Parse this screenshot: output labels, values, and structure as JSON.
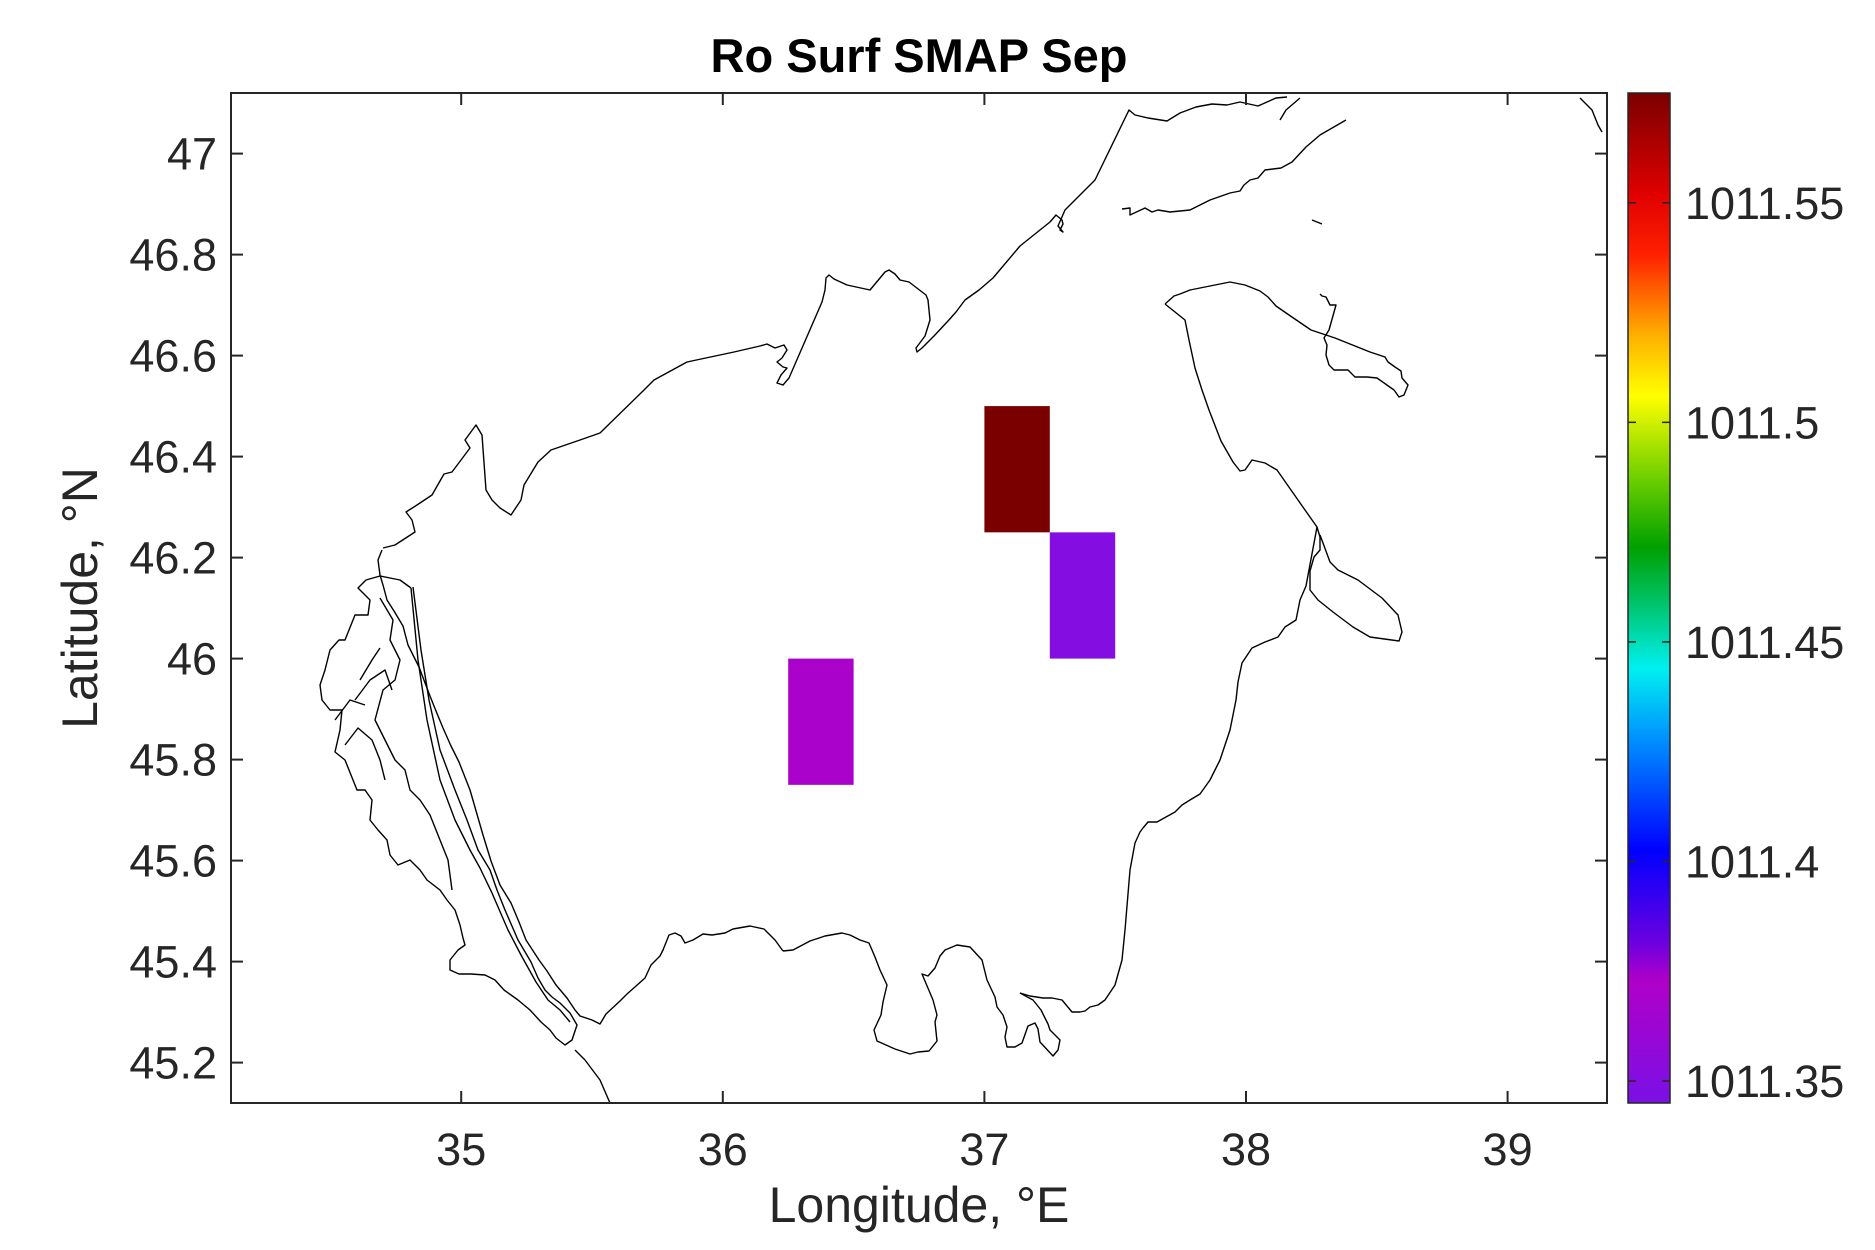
{
  "chart_data": {
    "type": "heatmap",
    "title": "Ro Surf SMAP Sep",
    "xlabel": "Longitude, °E",
    "ylabel": "Latitude, °N",
    "xlim": [
      34.12,
      39.38
    ],
    "ylim": [
      45.12,
      47.12
    ],
    "xticks": [
      35,
      36,
      37,
      38,
      39
    ],
    "xtick_labels": [
      "35",
      "36",
      "37",
      "38",
      "39"
    ],
    "yticks": [
      45.2,
      45.4,
      45.6,
      45.8,
      46,
      46.2,
      46.4,
      46.6,
      46.8,
      47
    ],
    "ytick_labels": [
      "45.2",
      "45.4",
      "45.6",
      "45.8",
      "46",
      "46.2",
      "46.4",
      "46.6",
      "46.8",
      "47"
    ],
    "grid": false,
    "colormap": "spectral-rainbow",
    "colorbar": {
      "range": [
        1011.345,
        1011.575
      ],
      "ticks": [
        1011.35,
        1011.4,
        1011.45,
        1011.5,
        1011.55
      ],
      "tick_labels": [
        "1011.35",
        "1011.4",
        "1011.45",
        "1011.5",
        "1011.55"
      ],
      "position": "right"
    },
    "cells": [
      {
        "lon_min": 37.0,
        "lon_max": 37.25,
        "lat_min": 46.25,
        "lat_max": 46.5,
        "value": 1011.575
      },
      {
        "lon_min": 37.25,
        "lon_max": 37.5,
        "lat_min": 46.0,
        "lat_max": 46.25,
        "value": 1011.35
      },
      {
        "lon_min": 36.25,
        "lon_max": 36.5,
        "lat_min": 45.75,
        "lat_max": 46.0,
        "value": 1011.37
      }
    ],
    "coastline_color": "#000000"
  }
}
